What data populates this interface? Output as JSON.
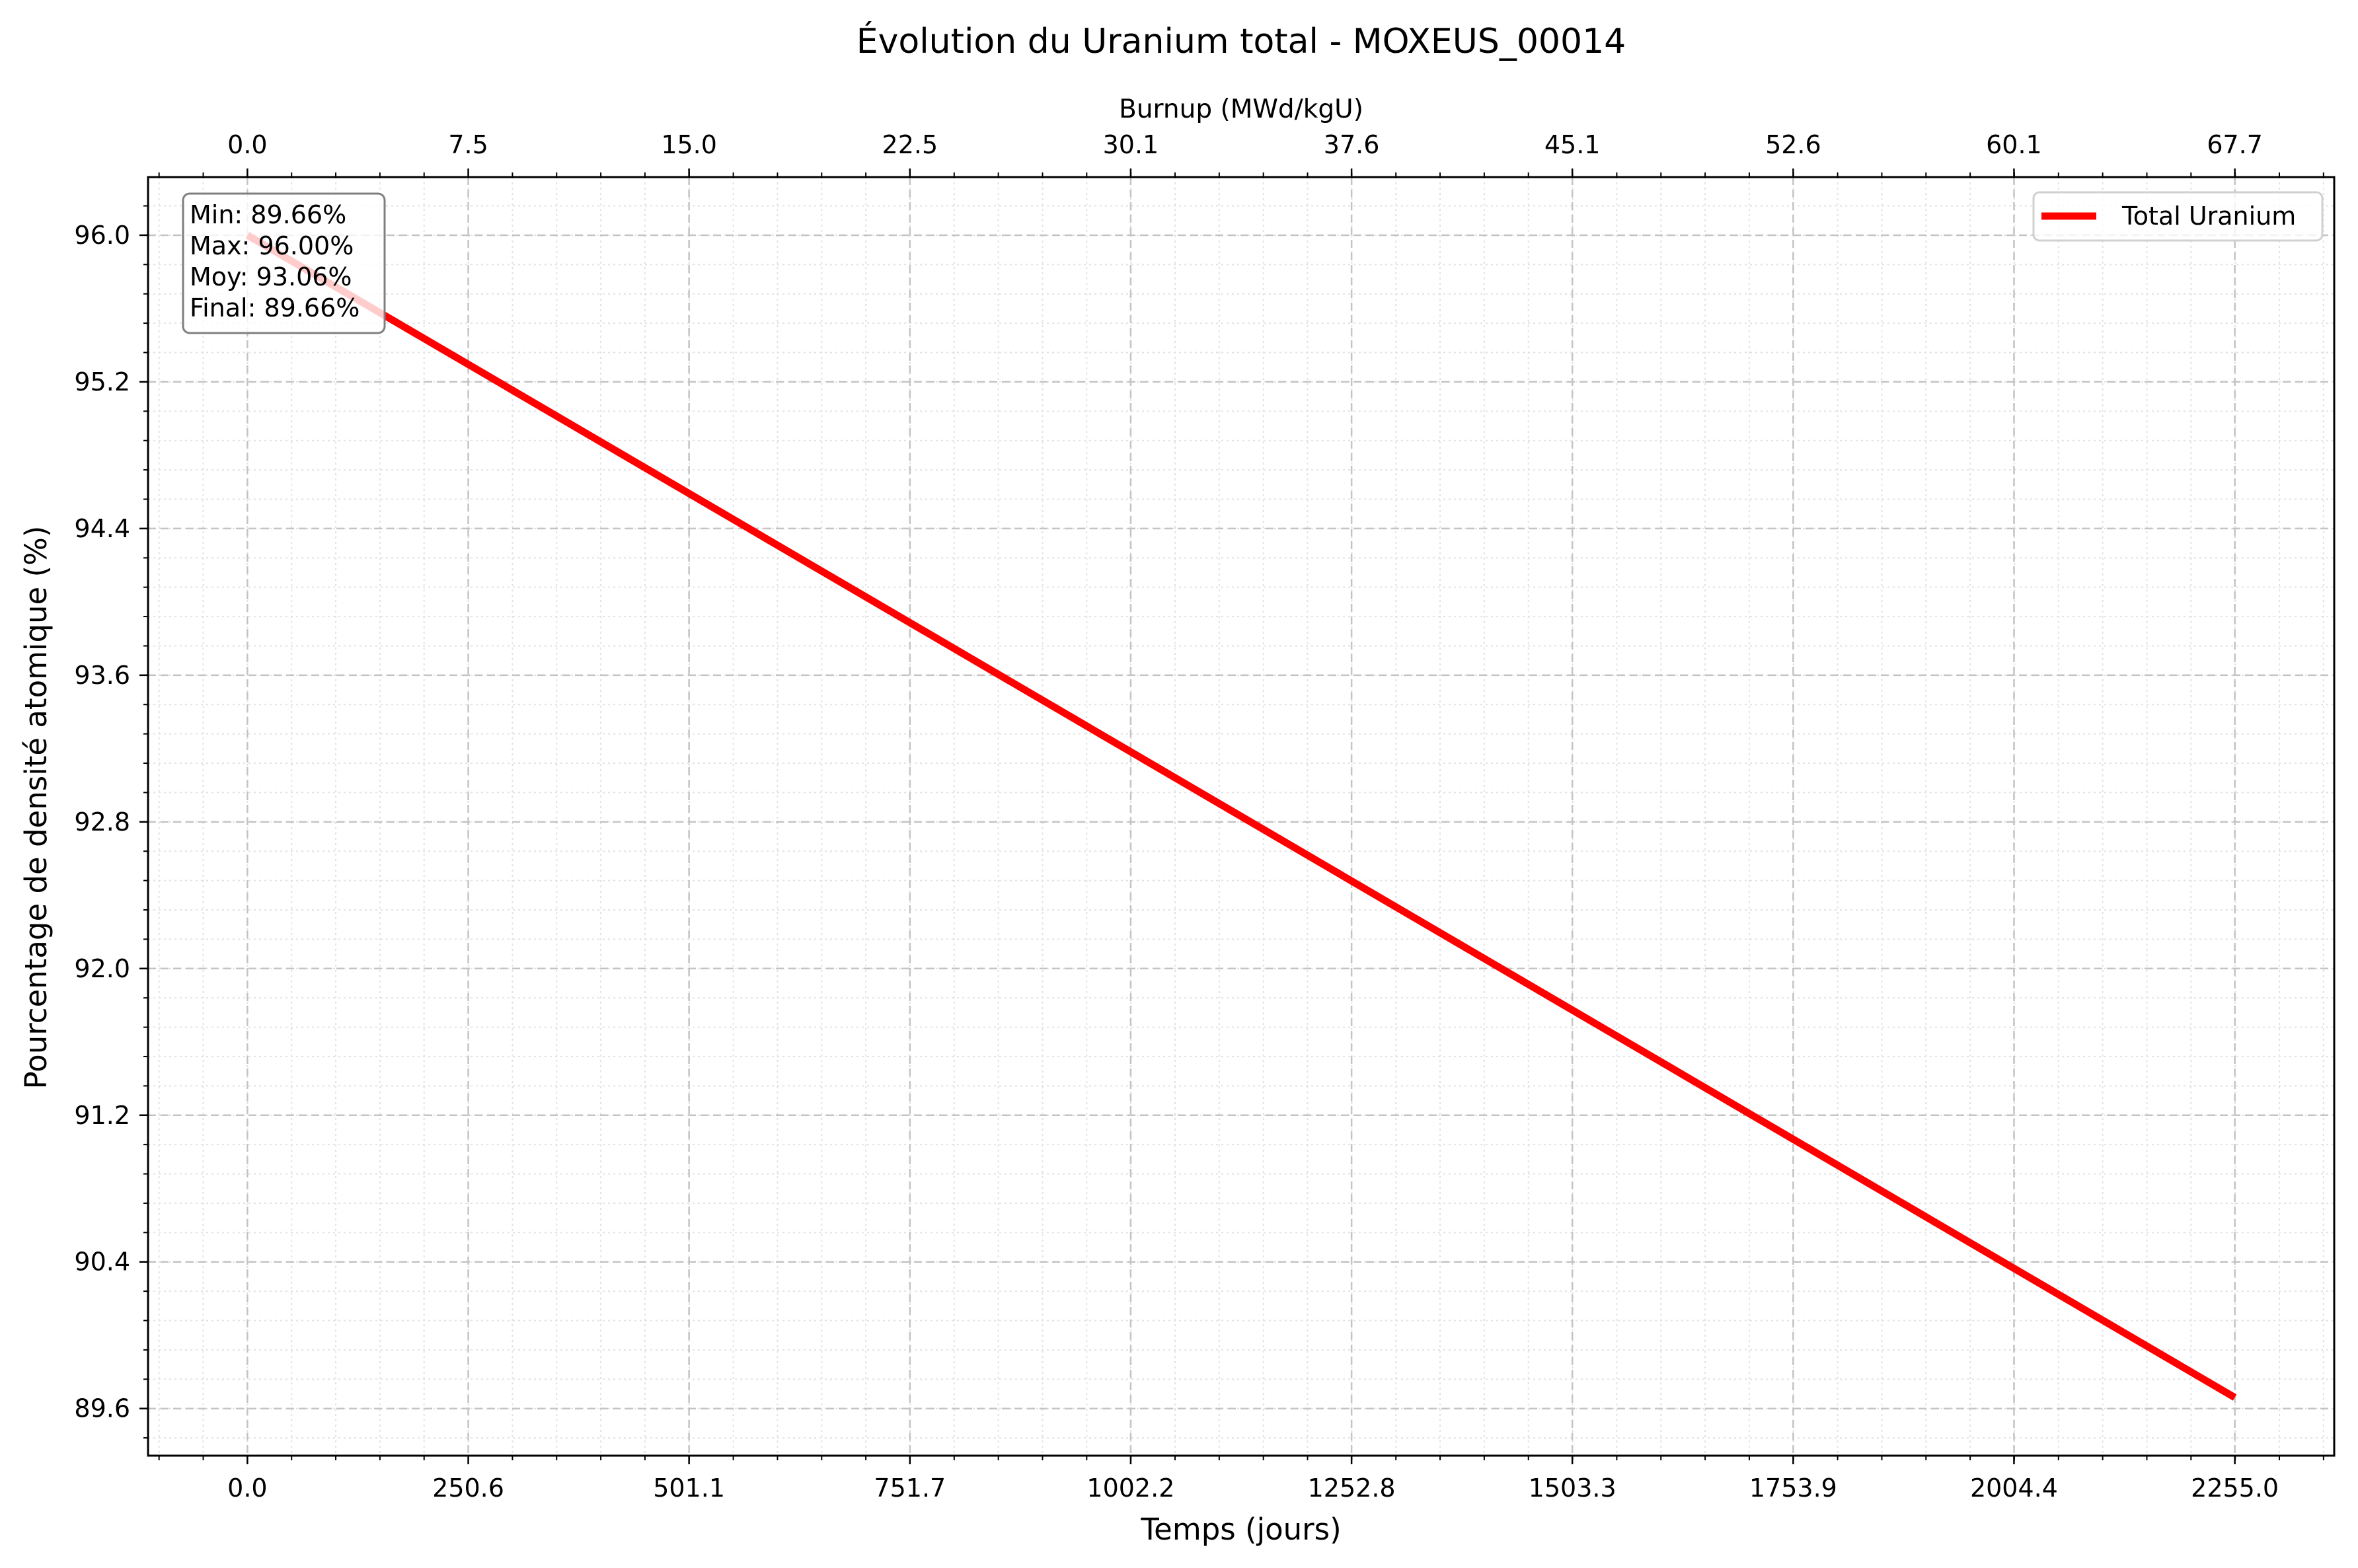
{
  "chart_data": {
    "type": "line",
    "title": "Évolution du Uranium total - MOXEUS_00014",
    "xlabel": "Temps (jours)",
    "ylabel": "Pourcentage de densité atomique (%)",
    "x2label": "Burnup (MWd/kgU)",
    "xlim": [
      -112.75,
      2367.75
    ],
    "ylim": [
      89.343,
      96.317
    ],
    "x_ticks": [
      0.0,
      250.6,
      501.1,
      751.7,
      1002.2,
      1252.8,
      1503.3,
      1753.9,
      2004.4,
      2255.0
    ],
    "x_tick_labels": [
      "0.0",
      "250.6",
      "501.1",
      "751.7",
      "1002.2",
      "1252.8",
      "1503.3",
      "1753.9",
      "2004.4",
      "2255.0"
    ],
    "x2_tick_labels": [
      "0.0",
      "7.5",
      "15.0",
      "22.5",
      "30.1",
      "37.6",
      "45.1",
      "52.6",
      "60.1",
      "67.7"
    ],
    "y_ticks": [
      89.6,
      90.4,
      91.2,
      92.0,
      92.8,
      93.6,
      94.4,
      95.2,
      96.0
    ],
    "y_tick_labels": [
      "89.6",
      "90.4",
      "91.2",
      "92.0",
      "92.8",
      "93.6",
      "94.4",
      "95.2",
      "96.0"
    ],
    "grid": true,
    "legend_position": "top-right",
    "series": [
      {
        "name": "Total Uranium",
        "color": "#ff0000",
        "x": [
          0.0,
          2255.0
        ],
        "y": [
          96.0,
          89.66
        ]
      }
    ],
    "stats_box": {
      "position": "top-left",
      "lines": [
        "Min: 89.66%",
        "Max: 96.00%",
        "Moy: 93.06%",
        "Final: 89.66%"
      ]
    }
  }
}
